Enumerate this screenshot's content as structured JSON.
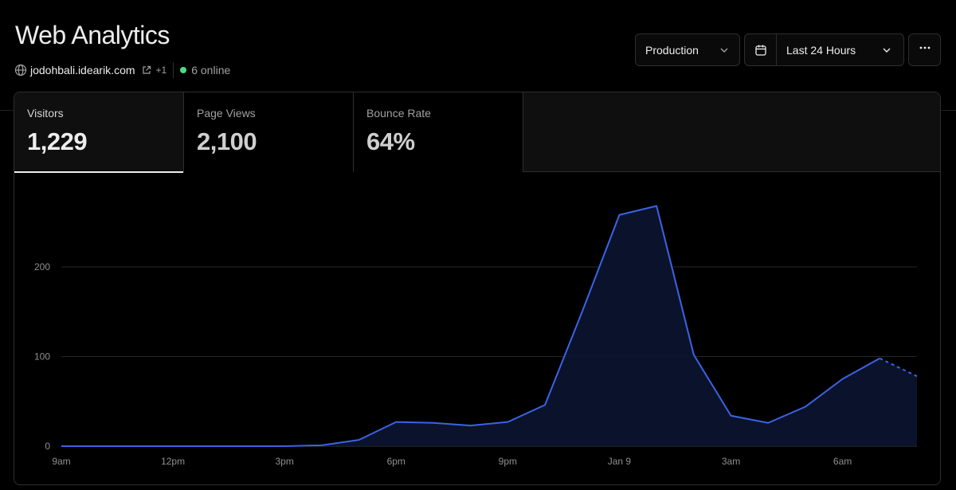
{
  "header": {
    "title": "Web Analytics",
    "domain": "jodohbali.idearik.com",
    "extra_domains": "+1",
    "online": "6 online"
  },
  "controls": {
    "environment": "Production",
    "range": "Last 24 Hours"
  },
  "icons": {
    "globe": "globe-icon",
    "external": "external-link-icon",
    "calendar": "calendar-icon",
    "chevron": "chevron-down-icon",
    "more": "more-horizontal-icon"
  },
  "colors": {
    "accent": "#3b63e6",
    "online_dot": "#4ade80"
  },
  "metrics": [
    {
      "label": "Visitors",
      "value": "1,229",
      "active": true
    },
    {
      "label": "Page Views",
      "value": "2,100",
      "active": false
    },
    {
      "label": "Bounce Rate",
      "value": "64%",
      "active": false
    }
  ],
  "chart_data": {
    "type": "area",
    "series": [
      {
        "values": [
          0,
          0,
          0,
          0,
          0,
          0,
          0,
          1,
          7,
          27,
          26,
          23,
          27,
          46,
          150,
          258,
          268,
          102,
          34,
          26,
          44,
          75,
          98,
          78
        ]
      }
    ],
    "partial_last_segment": true,
    "yticks": [
      "0",
      "100",
      "200"
    ],
    "ylim": [
      0,
      320
    ],
    "xtick_labels": [
      "9am",
      "12pm",
      "3pm",
      "6pm",
      "9pm",
      "Jan 9",
      "3am",
      "6am"
    ],
    "xtick_index": [
      0,
      3,
      6,
      9,
      12,
      15,
      18,
      21
    ],
    "grid": true
  }
}
